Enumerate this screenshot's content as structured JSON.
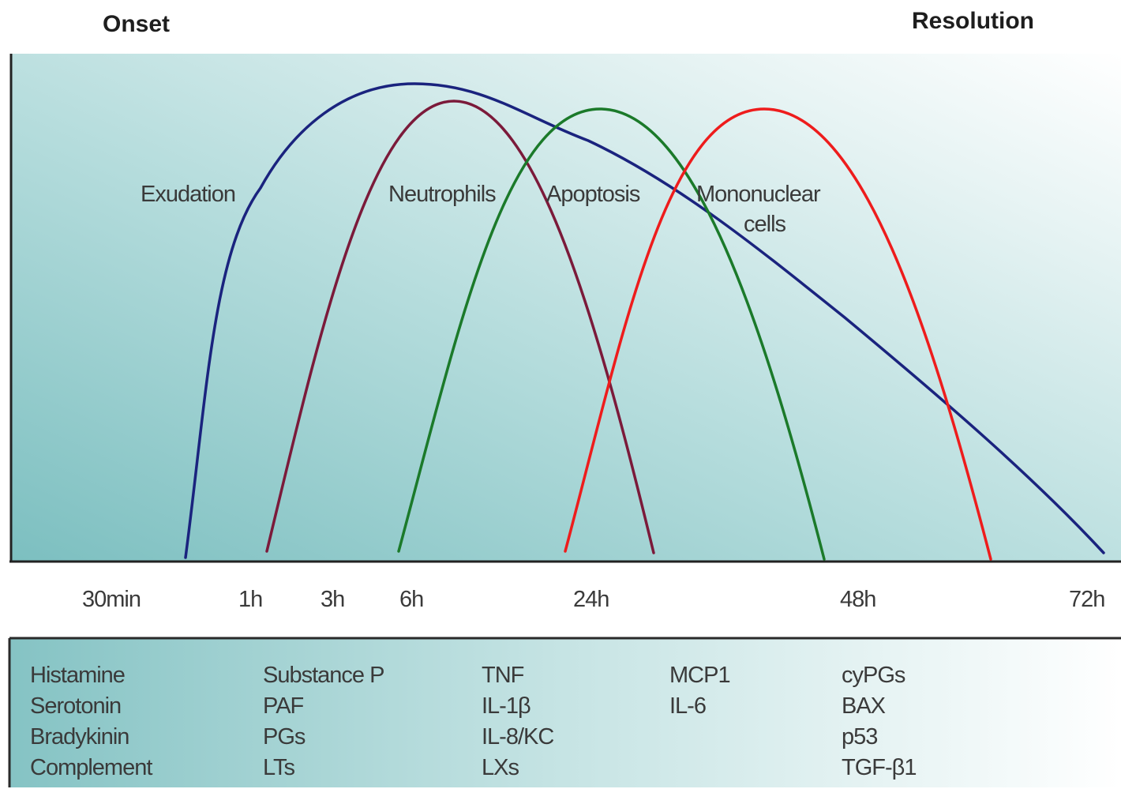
{
  "header": {
    "onset": "Onset",
    "resolution": "Resolution"
  },
  "curves": [
    {
      "id": "exudation",
      "label": "Exudation",
      "color": "#1a237e"
    },
    {
      "id": "neutrophils",
      "label": "Neutrophils",
      "color": "#7b1a3a"
    },
    {
      "id": "apoptosis",
      "label": "Apoptosis",
      "color": "#1b7a2a"
    },
    {
      "id": "mononuclear",
      "label_line1": "Mononuclear",
      "label_line2": "cells",
      "color": "#ee1c1c"
    }
  ],
  "timeline": {
    "ticks": [
      "30min",
      "1h",
      "3h",
      "6h",
      "24h",
      "48h",
      "72h"
    ]
  },
  "mediators": {
    "columns": [
      [
        "Histamine",
        "Serotonin",
        "Bradykinin",
        "Complement"
      ],
      [
        "Substance P",
        "PAF",
        "PGs",
        "LTs"
      ],
      [
        "TNF",
        "IL-1β",
        "IL-8/KC",
        "LXs"
      ],
      [
        "MCP1",
        "IL-6"
      ],
      [
        "cyPGs",
        "BAX",
        "p53",
        "TGF-β1"
      ]
    ]
  },
  "colors": {
    "panel_teal": "#7bbcbd",
    "panel_fade": "#ffffff",
    "axis": "#222222"
  }
}
